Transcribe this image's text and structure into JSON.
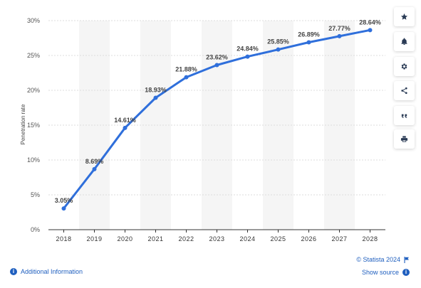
{
  "chart_data": {
    "type": "line",
    "x": [
      "2018",
      "2019",
      "2020",
      "2021",
      "2022",
      "2023",
      "2024",
      "2025",
      "2026",
      "2027",
      "2028"
    ],
    "values": [
      3.05,
      8.69,
      14.61,
      18.93,
      21.88,
      23.62,
      24.84,
      25.85,
      26.89,
      27.77,
      28.64
    ],
    "data_labels": [
      "3.05%",
      "8.69%",
      "14.61%",
      "18.93%",
      "21.88%",
      "23.62%",
      "24.84%",
      "25.85%",
      "26.89%",
      "27.77%",
      "28.64%"
    ],
    "ylabel": "Penetration rate",
    "xlabel": "",
    "yticks": [
      "0%",
      "5%",
      "10%",
      "15%",
      "20%",
      "25%",
      "30%"
    ],
    "ylim": [
      0,
      30
    ],
    "grid": true,
    "color": "#2f6fdb"
  },
  "toolbar": {
    "icons": [
      "star-icon",
      "bell-icon",
      "gear-icon",
      "share-icon",
      "quote-icon",
      "print-icon"
    ]
  },
  "footer": {
    "additional_info": "Additional Information",
    "copyright": "© Statista 2024",
    "show_source": "Show source"
  }
}
